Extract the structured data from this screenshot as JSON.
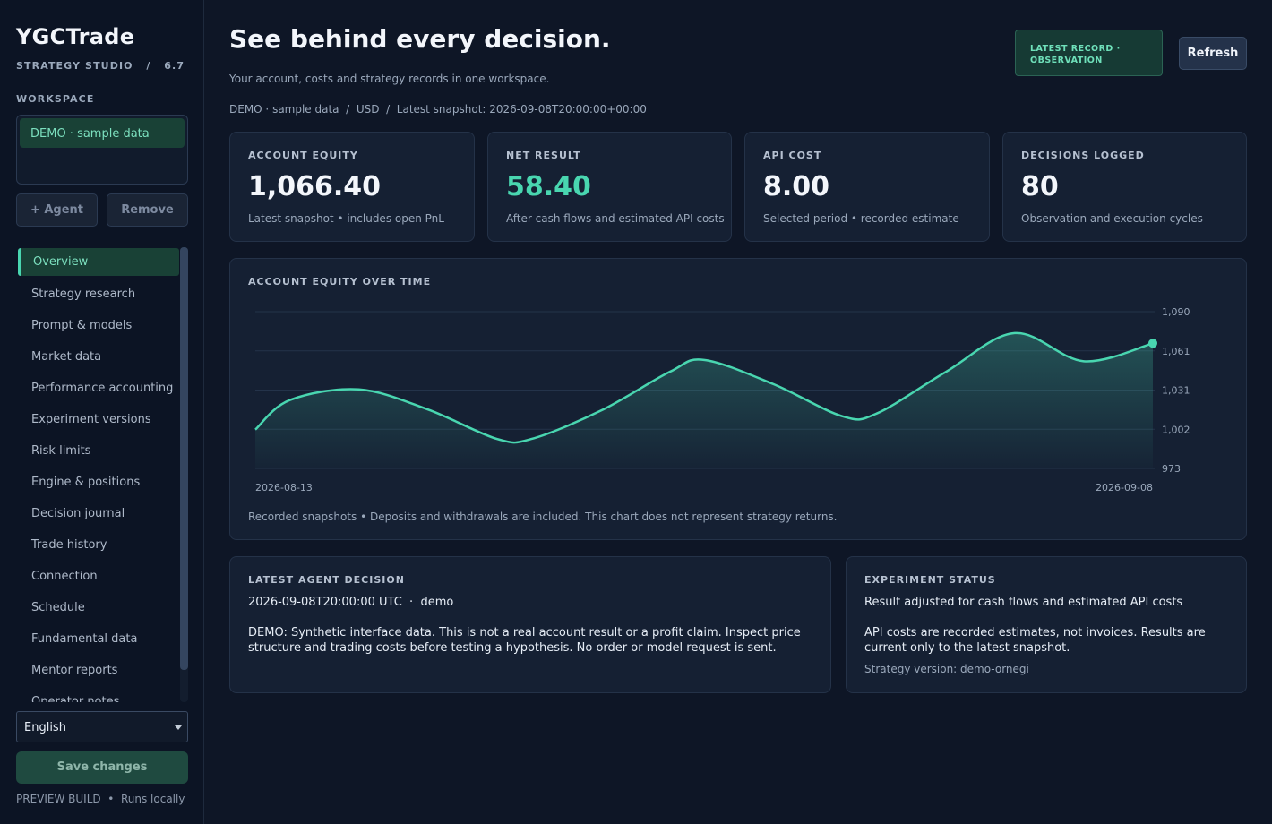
{
  "brand": {
    "name": "YGCTrade",
    "subtitle": "STRATEGY STUDIO   /   6.7"
  },
  "sidebar": {
    "workspace_label": "WORKSPACE",
    "workspace_selected": "DEMO · sample data",
    "add_agent_label": "+ Agent",
    "remove_label": "Remove",
    "nav": [
      {
        "label": "Overview",
        "active": true
      },
      {
        "label": "Strategy research"
      },
      {
        "label": "Prompt & models"
      },
      {
        "label": "Market data"
      },
      {
        "label": "Performance accounting"
      },
      {
        "label": "Experiment versions"
      },
      {
        "label": "Risk limits"
      },
      {
        "label": "Engine & positions"
      },
      {
        "label": "Decision journal"
      },
      {
        "label": "Trade history"
      },
      {
        "label": "Connection"
      },
      {
        "label": "Schedule"
      },
      {
        "label": "Fundamental data"
      },
      {
        "label": "Mentor reports"
      },
      {
        "label": "Operator notes"
      }
    ],
    "language": "English",
    "save_label": "Save changes",
    "footer": "PREVIEW BUILD  •  Runs locally"
  },
  "header": {
    "title": "See behind every decision.",
    "subtitle": "Your account, costs and strategy records in one workspace.",
    "meta": "DEMO · sample data  /  USD  /  Latest snapshot: 2026-09-08T20:00:00+00:00",
    "badge_line1": "LATEST RECORD ·",
    "badge_line2": "OBSERVATION",
    "refresh_label": "Refresh"
  },
  "stats": [
    {
      "label": "ACCOUNT EQUITY",
      "value": "1,066.40",
      "note": "Latest snapshot • includes open PnL"
    },
    {
      "label": "NET RESULT",
      "value": "58.40",
      "note": "After cash flows and estimated API costs"
    },
    {
      "label": "API COST",
      "value": "8.00",
      "note": "Selected period • recorded estimate"
    },
    {
      "label": "DECISIONS LOGGED",
      "value": "80",
      "note": "Observation and execution cycles"
    }
  ],
  "chart_section": {
    "title": "ACCOUNT EQUITY OVER TIME",
    "note": "Recorded snapshots • Deposits and withdrawals are included. This chart does not represent strategy returns."
  },
  "chart_data": {
    "type": "area",
    "title": "ACCOUNT EQUITY OVER TIME",
    "x": [
      "2026-08-13",
      "2026-08-14",
      "2026-08-16",
      "2026-08-18",
      "2026-08-20",
      "2026-08-21",
      "2026-08-23",
      "2026-08-25",
      "2026-08-26",
      "2026-08-28",
      "2026-08-30",
      "2026-08-31",
      "2026-09-02",
      "2026-09-04",
      "2026-09-06",
      "2026-09-08"
    ],
    "series": [
      {
        "values": [
          1002,
          1024,
          1032,
          1017,
          995,
          995,
          1016,
          1045,
          1054,
          1036,
          1012,
          1014,
          1045,
          1074,
          1053,
          1066.4
        ]
      }
    ],
    "x_tick_labels": [
      "2026-08-13",
      "2026-09-08"
    ],
    "y_ticks": [
      "973",
      "1,002",
      "1,031",
      "1,061",
      "1,090"
    ],
    "ylim": [
      973,
      1090
    ],
    "grid": true,
    "y_axis_position": "right",
    "line_color": "#49d6b0"
  },
  "decision": {
    "title": "LATEST AGENT DECISION",
    "time": "2026-09-08T20:00:00 UTC  ·  demo",
    "body": "DEMO: Synthetic interface data. This is not a real account result or a profit claim. Inspect price structure and trading costs before testing a hypothesis. No order or model request is sent."
  },
  "experiment": {
    "title": "EXPERIMENT STATUS",
    "line": "Result adjusted for cash flows and estimated API costs",
    "body": "API costs are recorded estimates, not invoices. Results are current only to the latest snapshot.",
    "version": "Strategy version: demo-ornegi"
  },
  "colors": {
    "accent": "#49d6b0",
    "background": "#0e1626",
    "card": "#152033"
  }
}
